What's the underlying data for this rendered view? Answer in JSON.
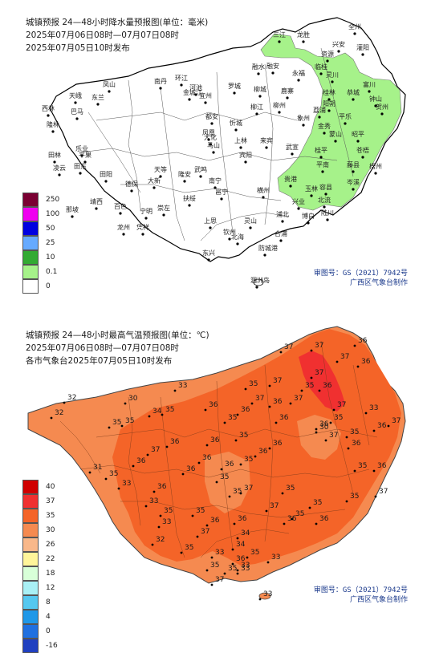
{
  "precip": {
    "title": "城镇预报 24—48小时降水量预报图(单位：毫米)",
    "period": "2025年07月06日08时—07月07日08时",
    "issued": "2025年07月05日10时发布",
    "legend": [
      {
        "label": "250",
        "color": "#7a0032"
      },
      {
        "label": "100",
        "color": "#f000f0"
      },
      {
        "label": "50",
        "color": "#0000e0"
      },
      {
        "label": "25",
        "color": "#66aaff"
      },
      {
        "label": "10",
        "color": "#33aa33"
      },
      {
        "label": "0.1",
        "color": "#a6f28a"
      },
      {
        "label": "0",
        "color": "#ffffff"
      }
    ],
    "cities": [
      "三江",
      "龙胜",
      "全州",
      "兴安",
      "灌阳",
      "融安",
      "融水",
      "资源",
      "临桂",
      "永福",
      "灵川",
      "桂林",
      "阳朔",
      "恭城",
      "荔浦",
      "平乐",
      "钟山",
      "富川",
      "贺州",
      "昭平",
      "蒙山",
      "金秀",
      "象州",
      "鹿寨",
      "柳城",
      "柳州",
      "柳江",
      "来宾",
      "武宣",
      "桂平",
      "平南",
      "藤县",
      "苍梧",
      "梧州",
      "岑溪",
      "容县",
      "北流",
      "玉林",
      "兴业",
      "陆川",
      "博白",
      "贵港",
      "横州",
      "宾阳",
      "上林",
      "马山",
      "武鸣",
      "南宁",
      "邕宁",
      "隆安",
      "扶绥",
      "崇左",
      "大新",
      "天等",
      "德保",
      "靖西",
      "那坡",
      "百色",
      "田阳",
      "田东",
      "平果",
      "凌云",
      "乐业",
      "田林",
      "隆林",
      "西林",
      "凤山",
      "东兰",
      "巴马",
      "天峨",
      "南丹",
      "环江",
      "河池",
      "宜州",
      "都安",
      "大化",
      "忻城",
      "上思",
      "钦州",
      "灵山",
      "防城港",
      "东兴",
      "北海",
      "合浦",
      "浦北",
      "宁明",
      "凭祥",
      "龙州",
      "罗城",
      "涠洲岛",
      "金城江",
      "凤凰"
    ],
    "footer_line1": "审图号：GS（2021）7942号",
    "footer_line2": "广西区气象台制作"
  },
  "temp": {
    "title": "城镇预报 24—48小时最高气温预报图(单位：℃)",
    "period": "2025年07月06日08时—07月07日08时",
    "issued": "各市气象台2025年07月05日10时发布",
    "legend": [
      {
        "label": "40",
        "color": "#d00000"
      },
      {
        "label": "37",
        "color": "#f03030"
      },
      {
        "label": "35",
        "color": "#f46428"
      },
      {
        "label": "30",
        "color": "#f58a50"
      },
      {
        "label": "26",
        "color": "#f9b88a"
      },
      {
        "label": "22",
        "color": "#fff59a"
      },
      {
        "label": "18",
        "color": "#d8ffd8"
      },
      {
        "label": "12",
        "color": "#a9f0f5"
      },
      {
        "label": "8",
        "color": "#55c8f0"
      },
      {
        "label": "4",
        "color": "#1f98e8"
      },
      {
        "label": "0",
        "color": "#2070e0"
      },
      {
        "label": "-16",
        "color": "#2040c0"
      }
    ],
    "values": [
      "37",
      "37",
      "36",
      "37",
      "36",
      "37",
      "37",
      "36",
      "35",
      "37",
      "35",
      "33",
      "36",
      "37",
      "35",
      "37",
      "36",
      "37",
      "36",
      "32",
      "30",
      "33",
      "35",
      "35",
      "34",
      "36",
      "35",
      "37",
      "35",
      "36",
      "36",
      "32",
      "35",
      "36",
      "37",
      "36",
      "35",
      "36",
      "36",
      "36",
      "35",
      "35",
      "36",
      "36",
      "30",
      "36",
      "35",
      "36",
      "37",
      "31",
      "33",
      "36",
      "33",
      "35",
      "35",
      "36",
      "35",
      "37",
      "37",
      "35",
      "35",
      "36",
      "35",
      "36",
      "35",
      "33",
      "32",
      "35",
      "36",
      "37",
      "34",
      "36",
      "35",
      "35",
      "36",
      "35",
      "37",
      "34",
      "33",
      "33",
      "33",
      "35",
      "33",
      "33"
    ],
    "footer_line1": "审图号：GS（2021）7942号",
    "footer_line2": "广西区气象台制作"
  }
}
